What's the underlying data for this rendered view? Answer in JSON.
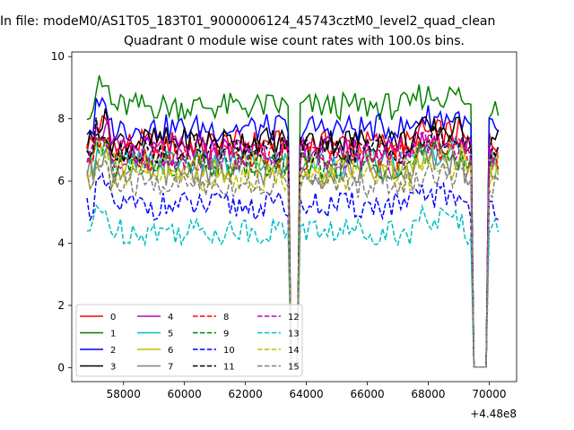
{
  "chart_data": {
    "type": "line",
    "suptitle": "In file: modeM0/AS1T05_183T01_9000006124_45743cztM0_level2_quad_clean",
    "title": "Quadrant 0 module wise count rates with 100.0s bins.",
    "xlabel": "",
    "ylabel": "",
    "offset_text": "+4.48e8",
    "xlim": [
      56300,
      70900
    ],
    "ylim": [
      -0.45,
      10.15
    ],
    "xticks": [
      58000,
      60000,
      62000,
      64000,
      66000,
      68000,
      70000
    ],
    "xtick_labels": [
      "58000",
      "60000",
      "62000",
      "64000",
      "66000",
      "68000",
      "70000"
    ],
    "yticks": [
      0,
      2,
      4,
      6,
      8,
      10
    ],
    "ytick_labels": [
      "0",
      "2",
      "4",
      "6",
      "8",
      "10"
    ],
    "x_start": 56800,
    "x_step": 100,
    "n_points": 136,
    "legend_position": "lower-left",
    "series": [
      {
        "name": "0",
        "color": "#ff0000",
        "dash": "solid",
        "base": 7.2
      },
      {
        "name": "1",
        "color": "#008000",
        "dash": "solid",
        "base": 8.4
      },
      {
        "name": "2",
        "color": "#0000ff",
        "dash": "solid",
        "base": 7.7
      },
      {
        "name": "3",
        "color": "#000000",
        "dash": "solid",
        "base": 7.3
      },
      {
        "name": "4",
        "color": "#bf00bf",
        "dash": "solid",
        "base": 7.0
      },
      {
        "name": "5",
        "color": "#00bfbf",
        "dash": "solid",
        "base": 6.6
      },
      {
        "name": "6",
        "color": "#bfbf00",
        "dash": "solid",
        "base": 6.5
      },
      {
        "name": "7",
        "color": "#808080",
        "dash": "solid",
        "base": 6.3
      },
      {
        "name": "8",
        "color": "#ff0000",
        "dash": "dashed",
        "base": 6.8
      },
      {
        "name": "9",
        "color": "#008000",
        "dash": "dashed",
        "base": 6.5
      },
      {
        "name": "10",
        "color": "#0000ff",
        "dash": "dashed",
        "base": 5.2
      },
      {
        "name": "11",
        "color": "#000000",
        "dash": "dashed",
        "base": 7.0
      },
      {
        "name": "12",
        "color": "#bf00bf",
        "dash": "dashed",
        "base": 6.8
      },
      {
        "name": "13",
        "color": "#00bfbf",
        "dash": "dashed",
        "base": 4.4
      },
      {
        "name": "14",
        "color": "#bfbf00",
        "dash": "dashed",
        "base": 6.1
      },
      {
        "name": "15",
        "color": "#808080",
        "dash": "dashed",
        "base": 5.9
      }
    ]
  }
}
